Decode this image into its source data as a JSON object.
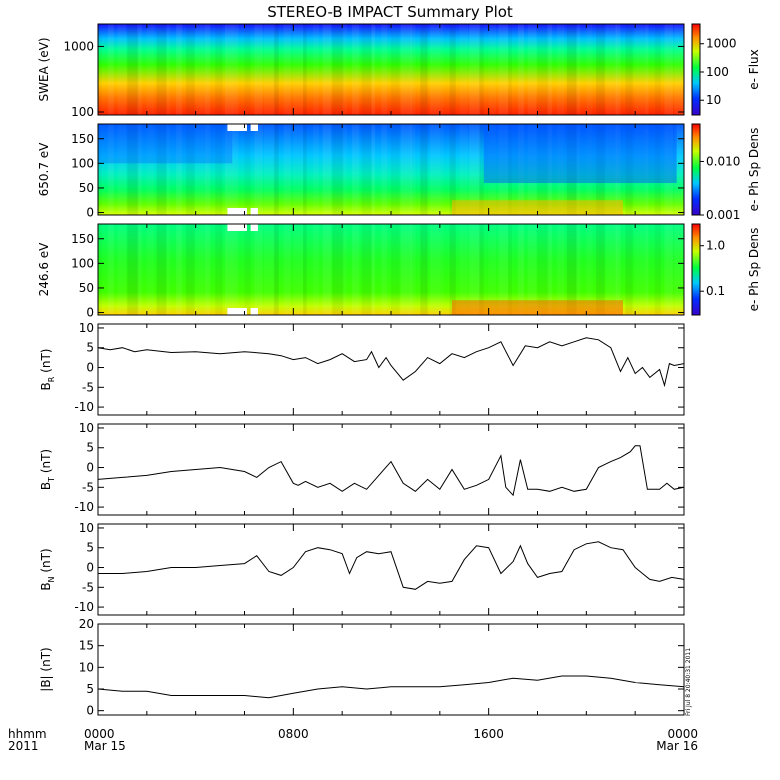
{
  "title": "STEREO-B IMPACT Summary Plot",
  "x_axis": {
    "tick_labels": [
      "0000",
      "0800",
      "1600",
      "0000"
    ],
    "date_labels": [
      "Mar 15",
      "",
      "",
      "Mar 16"
    ],
    "corner_label_1": "hhmm",
    "corner_label_2": "2011"
  },
  "stamp": "Fri Jul  8 20:40:31 2011",
  "chart_data": [
    {
      "type": "heatmap",
      "name": "swea",
      "ylabel": "SWEA (eV)",
      "y_scale": "log",
      "ylim": [
        90,
        2200
      ],
      "y_ticks": [
        100,
        1000
      ],
      "y_tick_labels": [
        "100",
        "1000"
      ],
      "colorbar": {
        "label": "e- Flux",
        "scale": "log",
        "range": [
          3,
          5000
        ],
        "ticks": [
          10,
          100,
          1000
        ],
        "tick_labels": [
          "10",
          "100",
          "1000"
        ]
      },
      "colors": {
        "low": "#1010ff",
        "mid": "#00ff00",
        "high": "#ff0000"
      }
    },
    {
      "type": "heatmap",
      "name": "pad650",
      "ylabel": "650.7 eV",
      "ylim": [
        -5,
        180
      ],
      "y_ticks": [
        0,
        50,
        100,
        150
      ],
      "y_tick_labels": [
        "0",
        "50",
        "100",
        "150"
      ],
      "colorbar": {
        "label": "e- Ph Sp Dens",
        "scale": "log",
        "range": [
          0.001,
          0.05
        ],
        "ticks": [
          0.001,
          0.01
        ],
        "tick_labels": [
          "0.001",
          "0.010"
        ]
      }
    },
    {
      "type": "heatmap",
      "name": "pad246",
      "ylabel": "246.6 eV",
      "ylim": [
        -5,
        180
      ],
      "y_ticks": [
        0,
        50,
        100,
        150
      ],
      "y_tick_labels": [
        "0",
        "50",
        "100",
        "150"
      ],
      "colorbar": {
        "label": "e- Ph Sp Dens",
        "scale": "log",
        "range": [
          0.03,
          3
        ],
        "ticks": [
          0.1,
          1
        ],
        "tick_labels": [
          "0.1",
          "1.0"
        ]
      }
    },
    {
      "type": "line",
      "name": "br",
      "ylabel": "BR (nT)",
      "ylabel_main": "B",
      "ylabel_sub": "R",
      "ylabel_unit": " (nT)",
      "ylim": [
        -12,
        11
      ],
      "y_ticks": [
        -10,
        -5,
        0,
        5,
        10
      ],
      "y_tick_labels": [
        "-10",
        "-5",
        "0",
        "5",
        "10"
      ],
      "x": [
        0,
        0.5,
        1,
        1.5,
        2,
        3,
        4,
        5,
        6,
        7,
        7.5,
        8,
        8.5,
        9,
        9.5,
        10,
        10.5,
        11,
        11.2,
        11.5,
        11.8,
        12,
        12.5,
        13,
        13.5,
        14,
        14.5,
        15,
        15.5,
        16,
        16.5,
        17,
        17.5,
        18,
        18.5,
        19,
        19.5,
        20,
        20.5,
        21,
        21.2,
        21.4,
        21.7,
        22,
        22.3,
        22.6,
        23,
        23.2,
        23.4,
        23.6,
        24
      ],
      "values": [
        5.0,
        4.5,
        5.0,
        4.0,
        4.5,
        3.8,
        4.0,
        3.5,
        4.0,
        3.5,
        3.0,
        2.0,
        2.5,
        1.0,
        2.0,
        3.5,
        1.5,
        2.0,
        4.0,
        0.0,
        2.5,
        0.5,
        -3.2,
        -1.0,
        2.5,
        1.0,
        3.5,
        2.5,
        4.0,
        5.0,
        6.5,
        0.5,
        5.5,
        5.0,
        6.5,
        5.5,
        6.5,
        7.5,
        7.0,
        5.0,
        2.0,
        -1.0,
        2.5,
        -1.5,
        0.0,
        -2.5,
        -0.5,
        -4.5,
        1.0,
        0.5,
        1.0
      ]
    },
    {
      "type": "line",
      "name": "bt",
      "ylabel": "BT (nT)",
      "ylabel_main": "B",
      "ylabel_sub": "T",
      "ylabel_unit": " (nT)",
      "ylim": [
        -12,
        11
      ],
      "y_ticks": [
        -10,
        -5,
        0,
        5,
        10
      ],
      "y_tick_labels": [
        "-10",
        "-5",
        "0",
        "5",
        "10"
      ],
      "x": [
        0,
        1,
        2,
        3,
        4,
        5,
        6,
        6.5,
        7,
        7.5,
        8,
        8.2,
        8.5,
        9,
        9.5,
        10,
        10.5,
        11,
        11.5,
        12,
        12.5,
        13,
        13.5,
        14,
        14.5,
        15,
        15.5,
        16,
        16.5,
        16.7,
        17,
        17.3,
        17.6,
        18,
        18.5,
        19,
        19.5,
        20,
        20.5,
        21,
        21.4,
        21.8,
        22,
        22.2,
        22.5,
        23,
        23.3,
        23.6,
        24
      ],
      "values": [
        -3.0,
        -2.5,
        -2.0,
        -1.0,
        -0.5,
        0.0,
        -1.0,
        -2.5,
        0.0,
        1.5,
        -4.0,
        -4.5,
        -3.5,
        -5.0,
        -4.0,
        -6.0,
        -4.0,
        -5.5,
        -2.0,
        1.5,
        -4.0,
        -6.0,
        -3.0,
        -5.5,
        -0.5,
        -5.5,
        -4.5,
        -3.0,
        3.0,
        -5.0,
        -7.0,
        2.0,
        -5.5,
        -5.5,
        -6.0,
        -5.0,
        -6.0,
        -5.5,
        0.0,
        1.5,
        2.5,
        4.0,
        5.5,
        5.5,
        -5.5,
        -5.5,
        -4.0,
        -5.5,
        -5.0
      ]
    },
    {
      "type": "line",
      "name": "bn",
      "ylabel": "BN (nT)",
      "ylabel_main": "B",
      "ylabel_sub": "N",
      "ylabel_unit": " (nT)",
      "ylim": [
        -12,
        11
      ],
      "y_ticks": [
        -10,
        -5,
        0,
        5,
        10
      ],
      "y_tick_labels": [
        "-10",
        "-5",
        "0",
        "5",
        "10"
      ],
      "x": [
        0,
        1,
        2,
        3,
        4,
        5,
        6,
        6.5,
        7,
        7.5,
        8,
        8.5,
        9,
        9.5,
        10,
        10.3,
        10.6,
        11,
        11.5,
        12,
        12.5,
        13,
        13.5,
        14,
        14.5,
        15,
        15.5,
        16,
        16.5,
        17,
        17.3,
        17.6,
        18,
        18.5,
        19,
        19.5,
        20,
        20.5,
        21,
        21.5,
        22,
        22.3,
        22.6,
        23,
        23.5,
        24
      ],
      "values": [
        -1.5,
        -1.5,
        -1.0,
        0.0,
        0.0,
        0.5,
        1.0,
        3.0,
        -1.0,
        -2.0,
        0.0,
        4.0,
        5.0,
        4.5,
        3.5,
        -1.5,
        2.5,
        4.0,
        3.5,
        4.0,
        -5.0,
        -5.5,
        -3.5,
        -4.0,
        -3.5,
        2.0,
        5.5,
        5.0,
        -1.5,
        1.5,
        5.5,
        1.0,
        -2.5,
        -1.5,
        -1.0,
        4.5,
        6.0,
        6.5,
        5.0,
        4.5,
        0.0,
        -1.5,
        -3.0,
        -3.5,
        -2.5,
        -3.0
      ]
    },
    {
      "type": "line",
      "name": "bmag",
      "ylabel": "|B| (nT)",
      "ylabel_main": "|B|",
      "ylabel_sub": "",
      "ylabel_unit": " (nT)",
      "ylim": [
        -1,
        20
      ],
      "y_ticks": [
        0,
        5,
        10,
        15,
        20
      ],
      "y_tick_labels": [
        "0",
        "5",
        "10",
        "15",
        "20"
      ],
      "x": [
        0,
        1,
        2,
        3,
        4,
        5,
        6,
        7,
        8,
        9,
        10,
        11,
        12,
        13,
        14,
        15,
        16,
        17,
        18,
        19,
        20,
        21,
        22,
        23,
        24
      ],
      "values": [
        5.0,
        4.5,
        4.5,
        3.5,
        3.5,
        3.5,
        3.5,
        3.0,
        4.0,
        5.0,
        5.5,
        5.0,
        5.5,
        5.5,
        5.5,
        6.0,
        6.5,
        7.5,
        7.0,
        8.0,
        8.0,
        7.5,
        6.5,
        6.0,
        5.5
      ]
    }
  ]
}
